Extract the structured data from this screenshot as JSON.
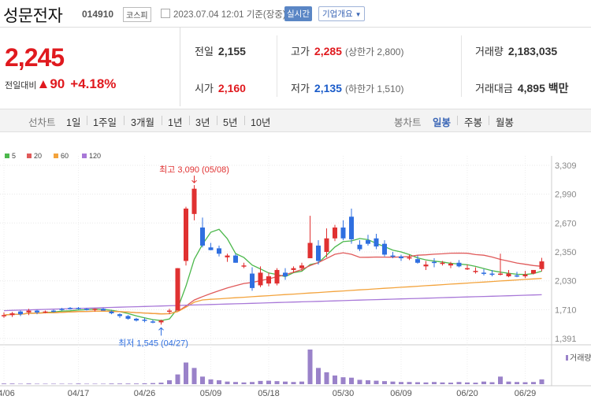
{
  "header": {
    "name": "성문전자",
    "code": "014910",
    "market": "코스피",
    "datetime": "2023.07.04 12:01 기준(장중)",
    "realtime_label": "실시간",
    "overview_label": "기업개요"
  },
  "price": {
    "current": "2,245",
    "change_label": "전일대비",
    "change": "90",
    "change_pct": "+4.18%"
  },
  "stats": {
    "prev_label": "전일",
    "prev": "2,155",
    "open_label": "시가",
    "open": "2,160",
    "high_label": "고가",
    "high": "2,285",
    "upper_limit": "(상한가 2,800)",
    "low_label": "저가",
    "low": "2,135",
    "lower_limit": "(하한가 1,510)",
    "volume_label": "거래량",
    "volume": "2,183,035",
    "amount_label": "거래대금",
    "amount": "4,895 백만"
  },
  "toolbar": {
    "line_chart": "선차트",
    "d1": "1일",
    "w1": "1주일",
    "m3": "3개월",
    "y1": "1년",
    "y3": "3년",
    "y5": "5년",
    "y10": "10년",
    "candle_chart": "봉차트",
    "daily": "일봉",
    "weekly": "주봉",
    "monthly": "월봉"
  },
  "legend": [
    {
      "label": "5",
      "color": "#4cb84c"
    },
    {
      "label": "20",
      "color": "#e05a5a"
    },
    {
      "label": "60",
      "color": "#f3a33c"
    },
    {
      "label": "120",
      "color": "#a878d8"
    }
  ],
  "chart_data": {
    "type": "candlestick",
    "y_ticks": [
      "3,309",
      "2,990",
      "2,670",
      "2,350",
      "2,030",
      "1,710",
      "1,391"
    ],
    "ylim": [
      1391,
      3309
    ],
    "x_ticks": [
      "04/06",
      "04/17",
      "04/26",
      "05/09",
      "05/18",
      "05/30",
      "06/09",
      "06/20",
      "06/29"
    ],
    "annotations": [
      {
        "text": "최고 3,090 (05/08)",
        "value": 3090
      },
      {
        "text": "최저 1,545 (04/27)",
        "value": 1545
      }
    ],
    "volume_label": "거래량",
    "candles": [
      {
        "o": 1650,
        "h": 1680,
        "l": 1620,
        "c": 1650
      },
      {
        "o": 1650,
        "h": 1685,
        "l": 1630,
        "c": 1670
      },
      {
        "o": 1690,
        "h": 1700,
        "l": 1640,
        "c": 1660
      },
      {
        "o": 1680,
        "h": 1720,
        "l": 1650,
        "c": 1700
      },
      {
        "o": 1700,
        "h": 1710,
        "l": 1660,
        "c": 1680
      },
      {
        "o": 1690,
        "h": 1700,
        "l": 1670,
        "c": 1690
      },
      {
        "o": 1700,
        "h": 1710,
        "l": 1680,
        "c": 1690
      },
      {
        "o": 1720,
        "h": 1730,
        "l": 1700,
        "c": 1710
      },
      {
        "o": 1730,
        "h": 1740,
        "l": 1710,
        "c": 1720
      },
      {
        "o": 1730,
        "h": 1740,
        "l": 1710,
        "c": 1720
      },
      {
        "o": 1720,
        "h": 1730,
        "l": 1700,
        "c": 1710
      },
      {
        "o": 1710,
        "h": 1725,
        "l": 1690,
        "c": 1720
      },
      {
        "o": 1720,
        "h": 1730,
        "l": 1700,
        "c": 1700
      },
      {
        "o": 1690,
        "h": 1700,
        "l": 1660,
        "c": 1670
      },
      {
        "o": 1660,
        "h": 1670,
        "l": 1620,
        "c": 1640
      },
      {
        "o": 1640,
        "h": 1650,
        "l": 1600,
        "c": 1610
      },
      {
        "o": 1610,
        "h": 1620,
        "l": 1580,
        "c": 1590
      },
      {
        "o": 1600,
        "h": 1620,
        "l": 1570,
        "c": 1590
      },
      {
        "o": 1580,
        "h": 1600,
        "l": 1560,
        "c": 1570
      },
      {
        "o": 1570,
        "h": 1600,
        "l": 1545,
        "c": 1590
      },
      {
        "o": 1690,
        "h": 1720,
        "l": 1660,
        "c": 1700
      },
      {
        "o": 1700,
        "h": 2170,
        "l": 1700,
        "c": 2170
      },
      {
        "o": 2250,
        "h": 2850,
        "l": 2200,
        "c": 2830
      },
      {
        "o": 2770,
        "h": 3090,
        "l": 2700,
        "c": 3050
      },
      {
        "o": 2620,
        "h": 2730,
        "l": 2400,
        "c": 2420
      },
      {
        "o": 2400,
        "h": 2450,
        "l": 2370,
        "c": 2370
      },
      {
        "o": 2390,
        "h": 2420,
        "l": 2300,
        "c": 2330
      },
      {
        "o": 2290,
        "h": 2330,
        "l": 2240,
        "c": 2310
      },
      {
        "o": 2310,
        "h": 2330,
        "l": 2230,
        "c": 2230
      },
      {
        "o": 2200,
        "h": 2230,
        "l": 2170,
        "c": 2200
      },
      {
        "o": 2110,
        "h": 2180,
        "l": 1920,
        "c": 1950
      },
      {
        "o": 1980,
        "h": 2190,
        "l": 1960,
        "c": 2120
      },
      {
        "o": 2000,
        "h": 2120,
        "l": 1970,
        "c": 2080
      },
      {
        "o": 2000,
        "h": 2170,
        "l": 1980,
        "c": 2150
      },
      {
        "o": 2120,
        "h": 2170,
        "l": 2040,
        "c": 2080
      },
      {
        "o": 2150,
        "h": 2190,
        "l": 2120,
        "c": 2170
      },
      {
        "o": 2170,
        "h": 2230,
        "l": 2140,
        "c": 2200
      },
      {
        "o": 2280,
        "h": 2750,
        "l": 2280,
        "c": 2450
      },
      {
        "o": 2420,
        "h": 2480,
        "l": 2210,
        "c": 2250
      },
      {
        "o": 2350,
        "h": 2610,
        "l": 2290,
        "c": 2500
      },
      {
        "o": 2500,
        "h": 2650,
        "l": 2470,
        "c": 2620
      },
      {
        "o": 2620,
        "h": 2700,
        "l": 2480,
        "c": 2500
      },
      {
        "o": 2740,
        "h": 2830,
        "l": 2440,
        "c": 2490
      },
      {
        "o": 2430,
        "h": 2480,
        "l": 2360,
        "c": 2380
      },
      {
        "o": 2480,
        "h": 2540,
        "l": 2420,
        "c": 2440
      },
      {
        "o": 2500,
        "h": 2550,
        "l": 2380,
        "c": 2410
      },
      {
        "o": 2440,
        "h": 2480,
        "l": 2300,
        "c": 2320
      },
      {
        "o": 2310,
        "h": 2350,
        "l": 2280,
        "c": 2300
      },
      {
        "o": 2300,
        "h": 2320,
        "l": 2250,
        "c": 2280
      },
      {
        "o": 2280,
        "h": 2320,
        "l": 2260,
        "c": 2290
      },
      {
        "o": 2270,
        "h": 2310,
        "l": 2220,
        "c": 2230
      },
      {
        "o": 2190,
        "h": 2250,
        "l": 2150,
        "c": 2210
      },
      {
        "o": 2240,
        "h": 2280,
        "l": 2180,
        "c": 2230
      },
      {
        "o": 2220,
        "h": 2250,
        "l": 2200,
        "c": 2230
      },
      {
        "o": 2200,
        "h": 2240,
        "l": 2170,
        "c": 2220
      },
      {
        "o": 2230,
        "h": 2260,
        "l": 2180,
        "c": 2190
      },
      {
        "o": 2160,
        "h": 2210,
        "l": 2150,
        "c": 2170
      },
      {
        "o": 2130,
        "h": 2180,
        "l": 2110,
        "c": 2140
      },
      {
        "o": 2120,
        "h": 2160,
        "l": 2090,
        "c": 2110
      },
      {
        "o": 2110,
        "h": 2150,
        "l": 2080,
        "c": 2100
      },
      {
        "o": 2100,
        "h": 2330,
        "l": 2090,
        "c": 2110
      },
      {
        "o": 2080,
        "h": 2150,
        "l": 2070,
        "c": 2110
      },
      {
        "o": 2090,
        "h": 2130,
        "l": 2070,
        "c": 2080
      },
      {
        "o": 2080,
        "h": 2140,
        "l": 2060,
        "c": 2100
      },
      {
        "o": 2110,
        "h": 2150,
        "l": 2100,
        "c": 2150
      },
      {
        "o": 2160,
        "h": 2285,
        "l": 2135,
        "c": 2245
      }
    ],
    "volume": [
      3,
      3,
      2,
      3,
      2,
      2,
      2,
      2,
      2,
      3,
      2,
      2,
      2,
      3,
      3,
      3,
      3,
      4,
      5,
      7,
      18,
      45,
      100,
      75,
      35,
      22,
      18,
      12,
      10,
      8,
      10,
      15,
      16,
      14,
      12,
      10,
      12,
      160,
      75,
      55,
      40,
      32,
      30,
      20,
      18,
      16,
      14,
      12,
      10,
      10,
      9,
      8,
      10,
      8,
      7,
      10,
      8,
      7,
      12,
      9,
      35,
      12,
      10,
      9,
      10,
      22
    ]
  }
}
